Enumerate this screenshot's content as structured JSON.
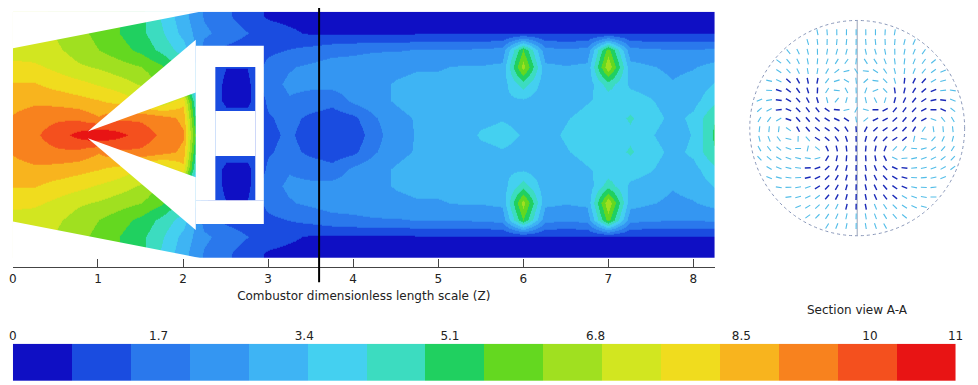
{
  "chart_data": {
    "type": "heatmap",
    "x_label": "Combustor dimensionless length scale (Z)",
    "x": [
      0,
      0.25,
      0.5,
      0.75,
      1,
      1.25,
      1.5,
      1.75,
      2,
      2.25,
      2.5,
      2.75,
      3,
      3.25,
      3.5,
      3.75,
      4,
      4.25,
      4.5,
      4.75,
      5,
      5.25,
      5.5,
      5.75,
      6,
      6.25,
      6.5,
      6.75,
      7,
      7.25,
      7.5,
      7.75,
      8,
      8.25
    ],
    "y": [
      -1.4,
      -1.2,
      -1,
      -0.8,
      -0.6,
      -0.4,
      -0.2,
      0,
      0.2,
      0.4,
      0.6,
      0.8,
      1,
      1.2,
      1.4
    ],
    "z": [
      [
        7.0,
        7.0,
        6.8,
        6.4,
        6.0,
        5.5,
        5.0,
        4.0,
        3.0,
        2.0,
        1.5,
        1.0,
        0.6,
        0.5,
        0.5,
        0.5,
        0.5,
        0.5,
        0.5,
        0.5,
        0.5,
        0.5,
        0.5,
        0.5,
        0.5,
        0.5,
        0.5,
        0.5,
        0.5,
        0.5,
        0.5,
        0.5,
        0.5,
        0.5
      ],
      [
        7.0,
        7.0,
        6.8,
        6.4,
        6.0,
        5.5,
        5.0,
        4.2,
        3.2,
        2.2,
        1.8,
        1.4,
        1.0,
        0.8,
        0.6,
        0.6,
        0.6,
        0.6,
        0.6,
        0.6,
        0.6,
        0.6,
        0.6,
        0.6,
        0.6,
        0.6,
        0.6,
        0.6,
        0.6,
        0.6,
        0.6,
        0.6,
        0.6,
        0.6
      ],
      [
        7.2,
        7.2,
        7.0,
        6.6,
        6.2,
        5.8,
        5.3,
        4.6,
        3.8,
        1.8,
        1.2,
        1.0,
        1.2,
        1.4,
        1.6,
        1.8,
        1.9,
        2.0,
        2.0,
        2.1,
        2.1,
        2.1,
        2.2,
        2.3,
        5.5,
        2.3,
        2.2,
        2.3,
        5.8,
        2.3,
        2.2,
        2.1,
        2.1,
        2.2
      ],
      [
        7.8,
        7.7,
        7.4,
        7.0,
        6.8,
        6.5,
        6.2,
        5.6,
        4.5,
        1.5,
        0.7,
        0.7,
        1.6,
        2.0,
        2.2,
        2.4,
        2.4,
        2.5,
        2.6,
        2.7,
        2.7,
        2.8,
        2.8,
        2.9,
        6.5,
        2.9,
        2.8,
        2.9,
        6.8,
        3.0,
        2.8,
        2.6,
        2.7,
        3.0
      ],
      [
        8.3,
        8.3,
        8.0,
        7.8,
        7.5,
        7.2,
        6.8,
        6.0,
        5.0,
        1.5,
        0.5,
        0.5,
        1.8,
        2.2,
        2.2,
        2.3,
        2.4,
        2.6,
        2.8,
        2.9,
        2.9,
        3.0,
        3.0,
        3.1,
        4.5,
        3.0,
        2.9,
        3.0,
        4.5,
        3.3,
        3.1,
        2.8,
        3.0,
        3.5
      ],
      [
        8.7,
        8.8,
        8.7,
        8.5,
        8.3,
        8.0,
        7.5,
        7.0,
        8.0,
        1.5,
        0.5,
        0.5,
        1.5,
        2.0,
        1.8,
        1.6,
        2.2,
        2.6,
        2.8,
        3.0,
        3.1,
        3.2,
        3.2,
        3.3,
        3.3,
        3.0,
        3.2,
        3.4,
        3.6,
        3.8,
        3.5,
        3.0,
        3.2,
        4.0
      ],
      [
        9,
        9.3,
        9.5,
        9.5,
        9,
        9.5,
        9.5,
        9.2,
        8.8,
        2,
        1,
        1,
        1.3,
        1.6,
        1.2,
        1.0,
        1.2,
        2.0,
        2.6,
        2.8,
        3.0,
        3.1,
        3.3,
        3.4,
        3.3,
        3.2,
        3.4,
        3.6,
        3.8,
        4.2,
        3.8,
        3.2,
        3.6,
        4.8
      ],
      [
        9,
        9.5,
        10,
        10.5,
        11,
        10.5,
        10,
        9.5,
        9,
        3,
        1,
        1,
        1.2,
        1.5,
        1.0,
        0.8,
        0.9,
        1.8,
        2.5,
        2.8,
        3.0,
        3.2,
        3.5,
        3.6,
        3.4,
        3.3,
        3.5,
        3.8,
        3.6,
        4.0,
        3.5,
        3.0,
        3.5,
        5.0
      ],
      [
        9,
        9.3,
        9.5,
        9.5,
        9,
        9.5,
        9.5,
        9.2,
        8.8,
        2,
        1,
        1,
        1.3,
        1.6,
        1.2,
        1.0,
        1.2,
        2.0,
        2.6,
        2.8,
        3.0,
        3.1,
        3.3,
        3.4,
        3.3,
        3.2,
        3.4,
        3.6,
        3.8,
        4.2,
        3.8,
        3.2,
        3.6,
        4.8
      ],
      [
        8.7,
        8.8,
        8.7,
        8.5,
        8.3,
        8.0,
        7.5,
        7.0,
        8.0,
        1.5,
        0.5,
        0.5,
        1.5,
        2.0,
        1.8,
        1.6,
        2.2,
        2.6,
        2.8,
        3.0,
        3.1,
        3.2,
        3.2,
        3.3,
        3.3,
        3.0,
        3.2,
        3.4,
        3.6,
        3.8,
        3.5,
        3.0,
        3.2,
        4.0
      ],
      [
        8.3,
        8.3,
        8.0,
        7.8,
        7.5,
        7.2,
        6.8,
        6.0,
        5.0,
        1.5,
        0.5,
        0.5,
        1.8,
        2.2,
        2.2,
        2.3,
        2.4,
        2.6,
        2.8,
        2.9,
        2.9,
        3.0,
        3.0,
        3.1,
        4.5,
        3.0,
        2.9,
        3.0,
        4.5,
        3.3,
        3.1,
        2.8,
        3.0,
        3.5
      ],
      [
        7.8,
        7.7,
        7.4,
        7.0,
        6.8,
        6.5,
        6.2,
        5.6,
        4.5,
        1.5,
        0.7,
        0.7,
        1.6,
        2.0,
        2.2,
        2.4,
        2.4,
        2.5,
        2.6,
        2.7,
        2.7,
        2.8,
        2.8,
        2.9,
        6.5,
        2.9,
        2.8,
        2.9,
        6.8,
        3.0,
        2.8,
        2.6,
        2.7,
        3.0
      ],
      [
        7.2,
        7.2,
        7.0,
        6.6,
        6.2,
        5.8,
        5.3,
        4.6,
        3.8,
        1.8,
        1.2,
        1.0,
        1.2,
        1.4,
        1.6,
        1.8,
        1.9,
        2.0,
        2.0,
        2.1,
        2.1,
        2.1,
        2.2,
        2.3,
        5.5,
        2.3,
        2.2,
        2.3,
        5.8,
        2.3,
        2.2,
        2.1,
        2.1,
        2.2
      ],
      [
        7.0,
        7.0,
        6.8,
        6.4,
        6.0,
        5.5,
        5.0,
        4.2,
        3.2,
        2.2,
        1.8,
        1.4,
        1.0,
        0.8,
        0.6,
        0.6,
        0.6,
        0.6,
        0.6,
        0.6,
        0.6,
        0.6,
        0.6,
        0.6,
        0.6,
        0.6,
        0.6,
        0.6,
        0.6,
        0.6,
        0.6,
        0.6,
        0.6,
        0.6
      ],
      [
        7.0,
        7.0,
        6.8,
        6.4,
        6.0,
        5.5,
        5.0,
        4.0,
        3.0,
        2.0,
        1.5,
        1.0,
        0.6,
        0.5,
        0.5,
        0.5,
        0.5,
        0.5,
        0.5,
        0.5,
        0.5,
        0.5,
        0.5,
        0.5,
        0.5,
        0.5,
        0.5,
        0.5,
        0.5,
        0.5,
        0.5,
        0.5,
        0.5,
        0.5
      ]
    ],
    "xlim": [
      0,
      8.25
    ],
    "xticks": [
      0,
      1,
      2,
      3,
      4,
      5,
      6,
      7,
      8
    ],
    "ylim": [
      -1.45,
      1.45
    ],
    "tick_labels": "x",
    "colorbar": {
      "range": [
        0,
        11
      ],
      "ticks": [
        0,
        1.7,
        3.4,
        5.1,
        6.8,
        8.5,
        10,
        11
      ]
    },
    "solid_regions": [
      {
        "x": [
          0,
          2.2,
          0
        ],
        "y": [
          1.02,
          1.45,
          1.45
        ]
      },
      {
        "x": [
          0,
          2.2,
          0
        ],
        "y": [
          -1.02,
          -1.45,
          -1.45
        ]
      },
      {
        "x": [
          0.88,
          2.15,
          2.15
        ],
        "y": [
          0.04,
          1.12,
          0.5
        ]
      },
      {
        "x": [
          0.88,
          2.15,
          2.15
        ],
        "y": [
          -0.04,
          -1.12,
          -0.5
        ]
      },
      {
        "x": [
          2.15,
          2.95,
          2.95,
          2.15
        ],
        "y": [
          0.8,
          0.8,
          1.05,
          1.05
        ]
      },
      {
        "x": [
          2.15,
          2.95,
          2.95,
          2.15
        ],
        "y": [
          -1.05,
          -1.05,
          -0.77,
          -0.77
        ]
      },
      {
        "x": [
          2.15,
          2.38,
          2.38,
          2.15
        ],
        "y": [
          -0.77,
          -0.77,
          0.8,
          0.8
        ]
      },
      {
        "x": [
          2.85,
          2.95,
          2.95,
          2.85
        ],
        "y": [
          -0.77,
          -0.77,
          0.8,
          0.8
        ]
      },
      {
        "x": [
          2.38,
          2.85,
          2.85,
          2.38
        ],
        "y": [
          -0.25,
          -0.25,
          0.28,
          0.28
        ]
      }
    ],
    "section_z": 3.6,
    "section_view": {
      "title": "Section view A-A",
      "radius": 1,
      "vortices": [
        {
          "x": -0.28,
          "y": 0.22,
          "r": 0.16,
          "spin": 1
        },
        {
          "x": 0.28,
          "y": 0.22,
          "r": 0.16,
          "spin": -1
        },
        {
          "x": -0.28,
          "y": -0.22,
          "r": 0.16,
          "spin": -1
        },
        {
          "x": 0.28,
          "y": -0.22,
          "r": 0.16,
          "spin": 1
        },
        {
          "x": -0.62,
          "y": 0.05,
          "r": 0.2,
          "spin": -1
        },
        {
          "x": 0.62,
          "y": 0.05,
          "r": 0.2,
          "spin": 1
        }
      ]
    }
  }
}
